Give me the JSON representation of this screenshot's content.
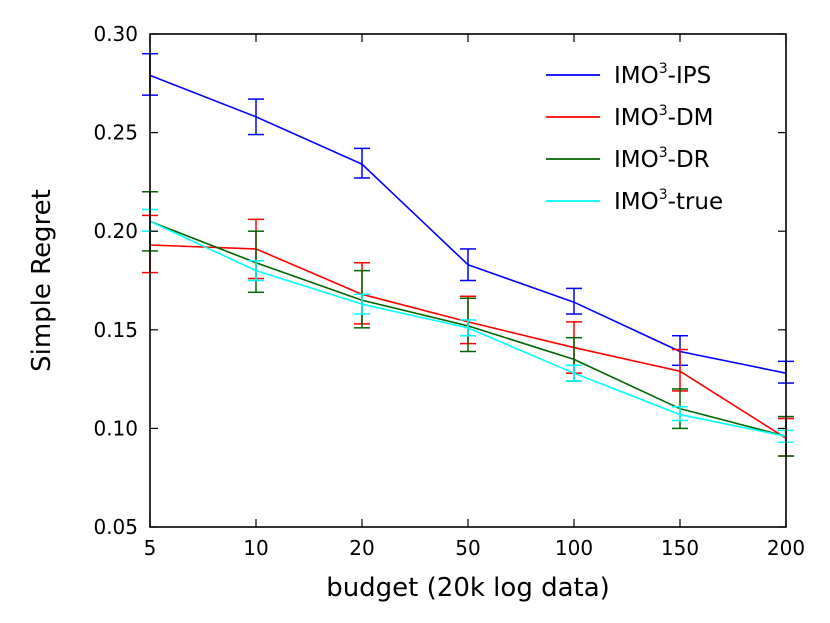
{
  "chart_data": {
    "type": "line",
    "title": "",
    "xlabel": "budget (20k log data)",
    "ylabel": "Simple Regret",
    "categories": [
      "5",
      "10",
      "20",
      "50",
      "100",
      "150",
      "200"
    ],
    "ylim": [
      0.05,
      0.3
    ],
    "yticks": [
      "0.05",
      "0.10",
      "0.15",
      "0.20",
      "0.25",
      "0.30"
    ],
    "legend_position": "top-right",
    "series": [
      {
        "name_base": "IMO",
        "name_sup": "3",
        "name_suffix": "-IPS",
        "color": "#0000ff",
        "values": [
          0.279,
          0.258,
          0.234,
          0.183,
          0.164,
          0.139,
          0.128
        ],
        "lower": [
          0.269,
          0.249,
          0.227,
          0.175,
          0.158,
          0.132,
          0.123
        ],
        "upper": [
          0.29,
          0.267,
          0.242,
          0.191,
          0.171,
          0.147,
          0.134
        ]
      },
      {
        "name_base": "IMO",
        "name_sup": "3",
        "name_suffix": "-DM",
        "color": "#ff0000",
        "values": [
          0.193,
          0.191,
          0.168,
          0.154,
          0.141,
          0.129,
          0.095
        ],
        "lower": [
          0.179,
          0.176,
          0.153,
          0.143,
          0.128,
          0.119,
          0.086
        ],
        "upper": [
          0.208,
          0.206,
          0.184,
          0.167,
          0.154,
          0.14,
          0.105
        ]
      },
      {
        "name_base": "IMO",
        "name_sup": "3",
        "name_suffix": "-DR",
        "color": "#006400",
        "values": [
          0.205,
          0.184,
          0.165,
          0.152,
          0.135,
          0.11,
          0.096
        ],
        "lower": [
          0.19,
          0.169,
          0.151,
          0.139,
          0.124,
          0.1,
          0.086
        ],
        "upper": [
          0.22,
          0.2,
          0.18,
          0.166,
          0.146,
          0.12,
          0.106
        ]
      },
      {
        "name_base": "IMO",
        "name_sup": "3",
        "name_suffix": "-true",
        "color": "#00ffff",
        "values": [
          0.205,
          0.18,
          0.163,
          0.151,
          0.128,
          0.107,
          0.096
        ],
        "lower": [
          0.2,
          0.175,
          0.158,
          0.147,
          0.124,
          0.104,
          0.093
        ],
        "upper": [
          0.211,
          0.185,
          0.168,
          0.155,
          0.132,
          0.111,
          0.099
        ]
      }
    ]
  }
}
